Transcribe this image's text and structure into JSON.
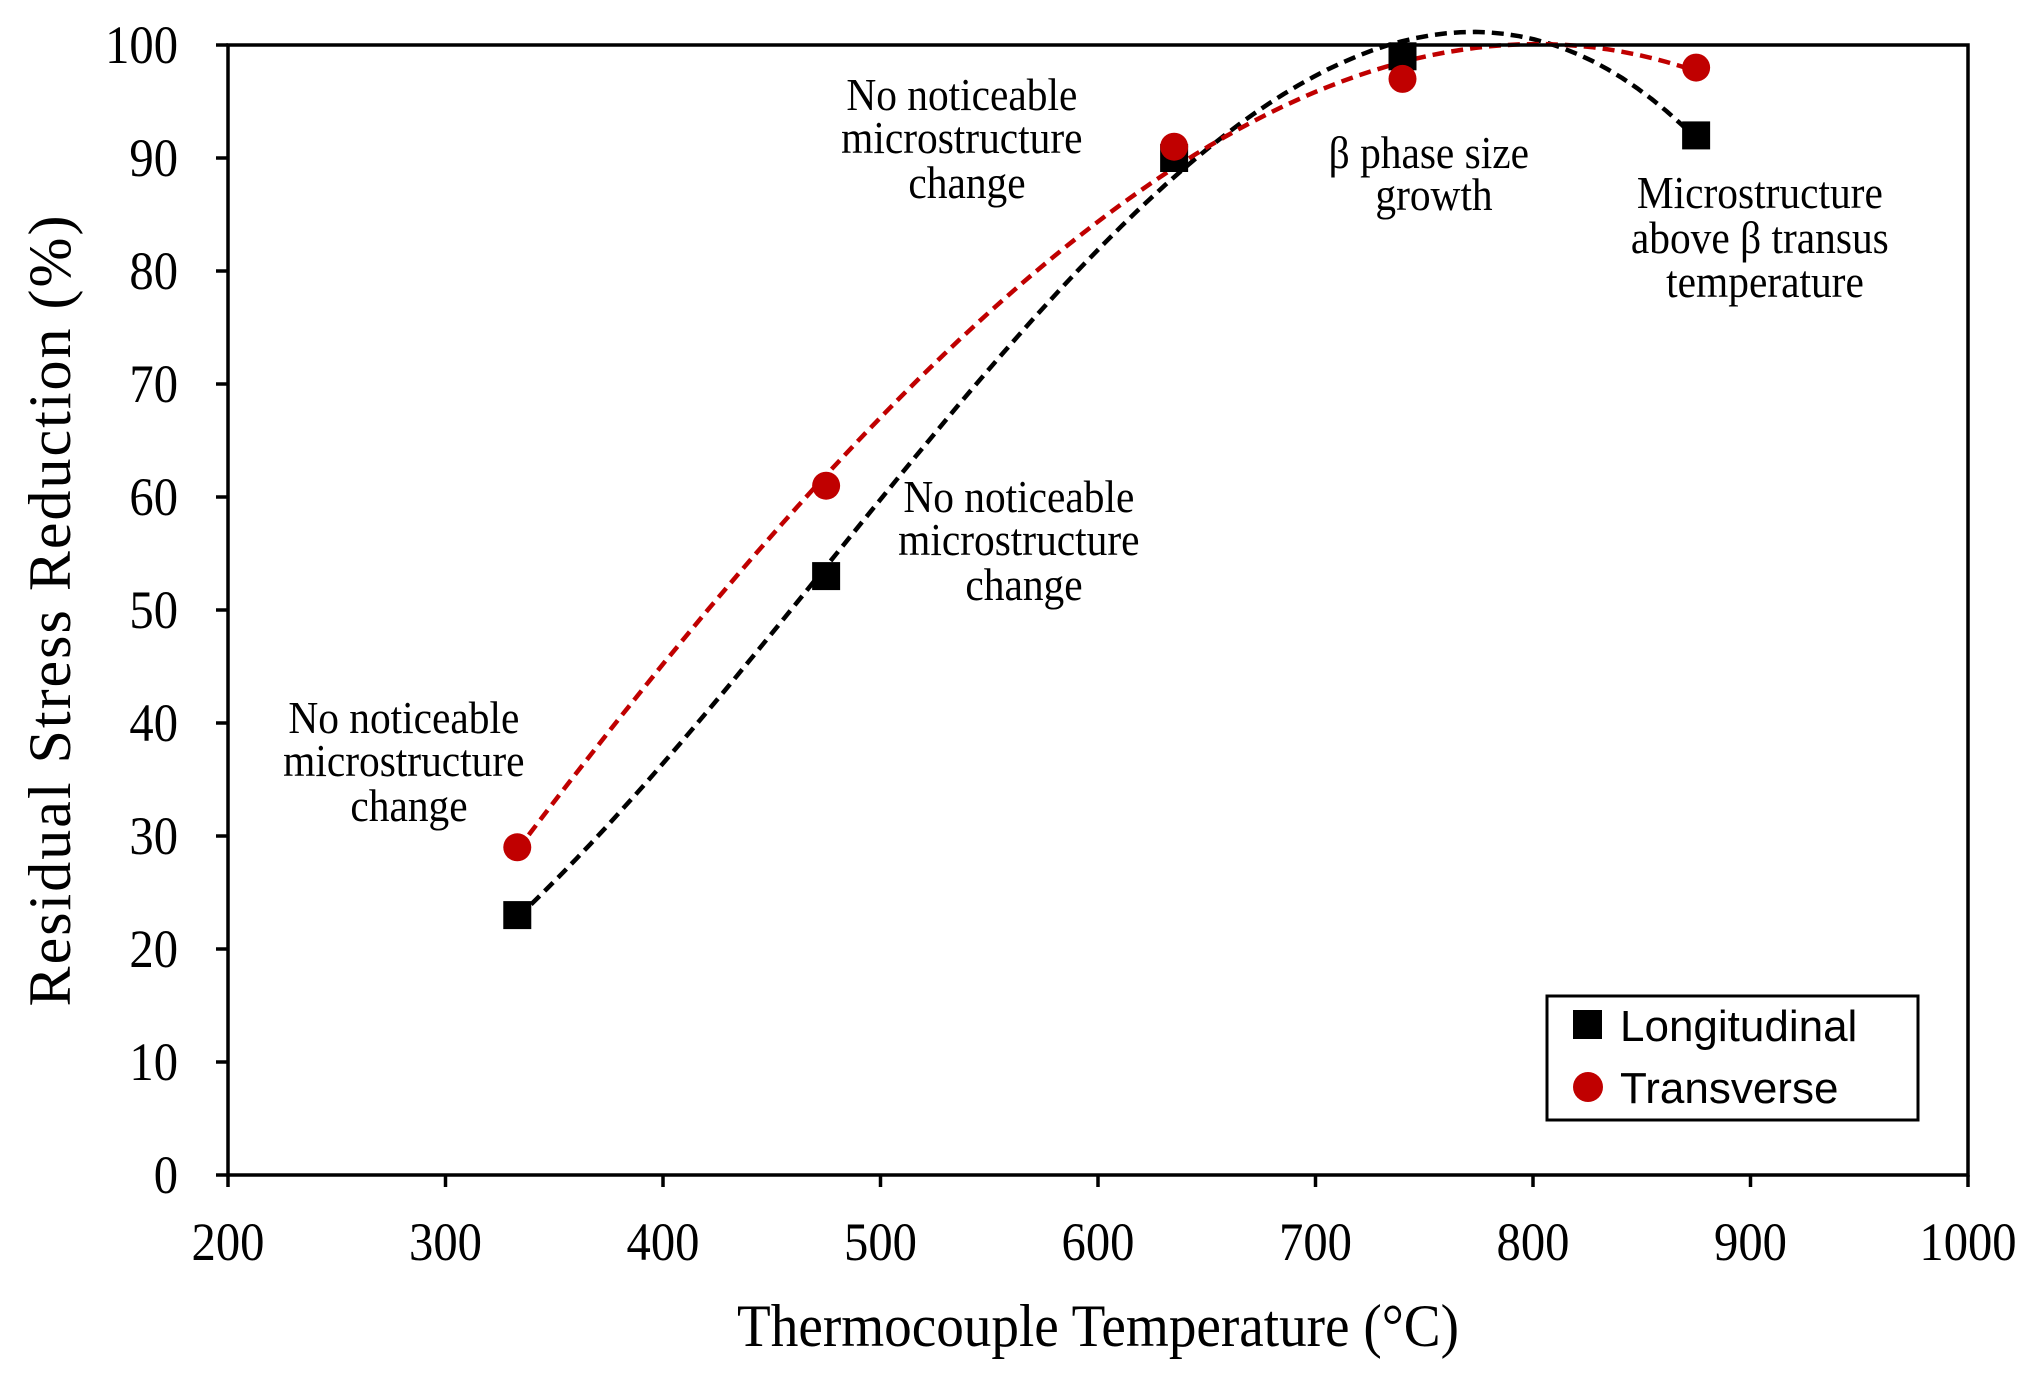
{
  "chart_data": {
    "type": "scatter",
    "title": "",
    "xlabel": "Thermocouple Temperature (°C)",
    "ylabel": "Residual Stress Reduction (%)",
    "xlim": [
      200,
      1000
    ],
    "ylim": [
      0,
      100
    ],
    "xticks": [
      "200",
      "300",
      "400",
      "500",
      "600",
      "700",
      "800",
      "900",
      "1000"
    ],
    "yticks": [
      "0",
      "10",
      "20",
      "30",
      "40",
      "50",
      "60",
      "70",
      "80",
      "90",
      "100"
    ],
    "grid": false,
    "legend_position": "bottom-right",
    "series": [
      {
        "name": "Longitudinal",
        "marker": "square",
        "color": "#000000",
        "trendline": "polynomial (dashed)",
        "x": [
          333,
          475,
          635,
          740,
          875
        ],
        "y": [
          23,
          53,
          90,
          99,
          92
        ]
      },
      {
        "name": "Transverse",
        "marker": "circle",
        "color": "#C00000",
        "trendline": "polynomial (dashed)",
        "x": [
          333,
          475,
          635,
          740,
          875
        ],
        "y": [
          29,
          61,
          91,
          97,
          98
        ]
      }
    ],
    "annotations": [
      {
        "lines": [
          "No noticeable",
          "microstructure",
          "change"
        ]
      },
      {
        "lines": [
          "No noticeable",
          "microstructure",
          "change"
        ]
      },
      {
        "lines": [
          "No noticeable",
          "microstructure",
          "change"
        ]
      },
      {
        "lines": [
          "β phase size",
          "growth"
        ]
      },
      {
        "lines": [
          "Microstructure",
          "above β transus",
          "temperature"
        ]
      }
    ]
  }
}
